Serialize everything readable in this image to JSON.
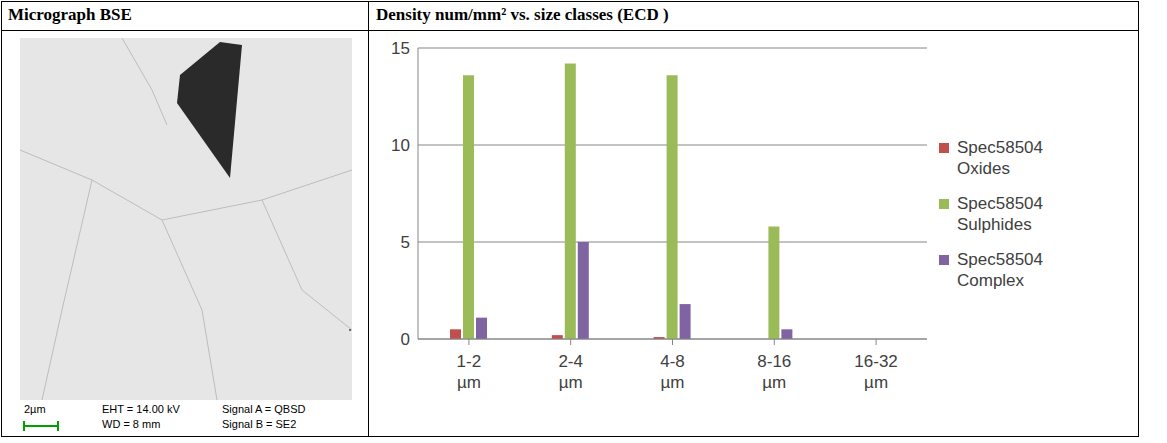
{
  "table": {
    "headers": [
      "Micrograph BSE",
      "Density num/mm² vs. size classes (ECD )"
    ],
    "micrograph": {
      "scale_bar": "2µm",
      "info": [
        "EHT = 14.00 kV",
        "WD = 8 mm",
        "Signal A = QBSD",
        "Signal B = SE2"
      ]
    }
  },
  "chart_data": {
    "type": "bar",
    "categories": [
      "1-2 µm",
      "2-4 µm",
      "4-8 µm",
      "8-16 µm",
      "16-32 µm"
    ],
    "series": [
      {
        "name": "Spec58504 Oxides",
        "color": "#c0504d",
        "values": [
          0.5,
          0.2,
          0.1,
          0,
          0
        ]
      },
      {
        "name": "Spec58504 Sulphides",
        "color": "#9bbb59",
        "values": [
          13.6,
          14.2,
          13.6,
          5.8,
          0
        ]
      },
      {
        "name": "Spec58504 Complex",
        "color": "#8064a2",
        "values": [
          1.1,
          5.0,
          1.8,
          0.5,
          0
        ]
      }
    ],
    "ylim": [
      0,
      15
    ],
    "yticks": [
      0,
      5,
      10,
      15
    ],
    "grid": true,
    "legend": "right"
  }
}
